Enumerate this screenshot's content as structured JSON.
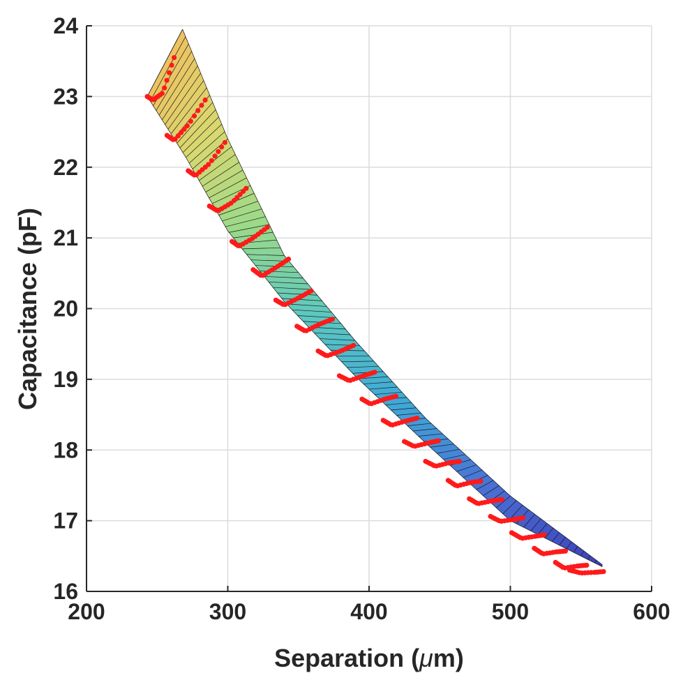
{
  "chart_data": {
    "type": "surface",
    "title": "",
    "xlabel_prefix": "Separation (",
    "xlabel_mu": "μ",
    "xlabel_suffix": "m)",
    "ylabel": "Capacitance (pF)",
    "xlim": [
      200,
      600
    ],
    "ylim": [
      16,
      24
    ],
    "xticks": [
      {
        "value": 200,
        "label": "200"
      },
      {
        "value": 300,
        "label": "300"
      },
      {
        "value": 400,
        "label": "400"
      },
      {
        "value": 500,
        "label": "500"
      },
      {
        "value": 600,
        "label": "600"
      }
    ],
    "yticks": [
      {
        "value": 16,
        "label": "16"
      },
      {
        "value": 17,
        "label": "17"
      },
      {
        "value": 18,
        "label": "18"
      },
      {
        "value": 19,
        "label": "19"
      },
      {
        "value": 20,
        "label": "20"
      },
      {
        "value": 21,
        "label": "21"
      },
      {
        "value": 22,
        "label": "22"
      },
      {
        "value": 23,
        "label": "23"
      },
      {
        "value": 24,
        "label": "24"
      }
    ],
    "grid": true,
    "surface": {
      "lower_edge": [
        [
          243,
          23.0
        ],
        [
          270,
          22.15
        ],
        [
          300,
          21.1
        ],
        [
          340,
          20.1
        ],
        [
          390,
          19.05
        ],
        [
          440,
          18.1
        ],
        [
          500,
          17.0
        ],
        [
          565,
          16.35
        ]
      ],
      "upper_edge": [
        [
          268,
          23.95
        ],
        [
          300,
          22.4
        ],
        [
          340,
          20.75
        ],
        [
          390,
          19.55
        ],
        [
          440,
          18.45
        ],
        [
          500,
          17.35
        ],
        [
          565,
          16.38
        ]
      ],
      "colormap": [
        "#3a3ab5",
        "#4a6fd4",
        "#3fa8d8",
        "#5cc8c0",
        "#9ad98a",
        "#d8d870",
        "#f0c060"
      ],
      "mesh_lines": 90
    },
    "series": [
      {
        "marker": "dot",
        "color": "#ff1a1a",
        "arcs": [
          [
            [
              243,
              23.0
            ],
            [
              247,
              22.95
            ],
            [
              254,
              23.05
            ],
            [
              262,
              23.55
            ]
          ],
          [
            [
              257,
              22.45
            ],
            [
              262,
              22.38
            ],
            [
              272,
              22.6
            ],
            [
              284,
              22.95
            ]
          ],
          [
            [
              272,
              21.95
            ],
            [
              277,
              21.88
            ],
            [
              287,
              22.05
            ],
            [
              298,
              22.35
            ]
          ],
          [
            [
              287,
              21.45
            ],
            [
              293,
              21.38
            ],
            [
              303,
              21.5
            ],
            [
              313,
              21.7
            ]
          ],
          [
            [
              303,
              20.95
            ],
            [
              308,
              20.88
            ],
            [
              318,
              21.0
            ],
            [
              328,
              21.15
            ]
          ],
          [
            [
              318,
              20.55
            ],
            [
              324,
              20.46
            ],
            [
              334,
              20.58
            ],
            [
              343,
              20.7
            ]
          ],
          [
            [
              334,
              20.12
            ],
            [
              340,
              20.05
            ],
            [
              350,
              20.15
            ],
            [
              359,
              20.25
            ]
          ],
          [
            [
              349,
              19.75
            ],
            [
              355,
              19.68
            ],
            [
              365,
              19.78
            ],
            [
              374,
              19.85
            ]
          ],
          [
            [
              364,
              19.4
            ],
            [
              370,
              19.33
            ],
            [
              380,
              19.4
            ],
            [
              389,
              19.48
            ]
          ],
          [
            [
              379,
              19.05
            ],
            [
              386,
              18.98
            ],
            [
              396,
              19.05
            ],
            [
              404,
              19.1
            ]
          ],
          [
            [
              395,
              18.72
            ],
            [
              401,
              18.65
            ],
            [
              411,
              18.72
            ],
            [
              419,
              18.76
            ]
          ],
          [
            [
              410,
              18.42
            ],
            [
              416,
              18.35
            ],
            [
              426,
              18.41
            ],
            [
              434,
              18.45
            ]
          ],
          [
            [
              425,
              18.12
            ],
            [
              432,
              18.05
            ],
            [
              442,
              18.1
            ],
            [
              449,
              18.13
            ]
          ],
          [
            [
              440,
              17.84
            ],
            [
              447,
              17.77
            ],
            [
              457,
              17.82
            ],
            [
              464,
              17.84
            ]
          ],
          [
            [
              456,
              17.57
            ],
            [
              462,
              17.49
            ],
            [
              472,
              17.54
            ],
            [
              479,
              17.56
            ]
          ],
          [
            [
              471,
              17.31
            ],
            [
              477,
              17.24
            ],
            [
              487,
              17.28
            ],
            [
              494,
              17.3
            ]
          ],
          [
            [
              486,
              17.06
            ],
            [
              493,
              16.99
            ],
            [
              503,
              17.02
            ],
            [
              509,
              17.04
            ]
          ],
          [
            [
              501,
              16.83
            ],
            [
              508,
              16.75
            ],
            [
              518,
              16.78
            ],
            [
              524,
              16.8
            ]
          ],
          [
            [
              517,
              16.61
            ],
            [
              523,
              16.53
            ],
            [
              533,
              16.56
            ],
            [
              539,
              16.57
            ]
          ],
          [
            [
              532,
              16.41
            ],
            [
              538,
              16.33
            ],
            [
              548,
              16.36
            ],
            [
              554,
              16.37
            ]
          ],
          [
            [
              542,
              16.3
            ],
            [
              550,
              16.26
            ],
            [
              560,
              16.27
            ],
            [
              566,
              16.28
            ]
          ]
        ]
      }
    ]
  }
}
